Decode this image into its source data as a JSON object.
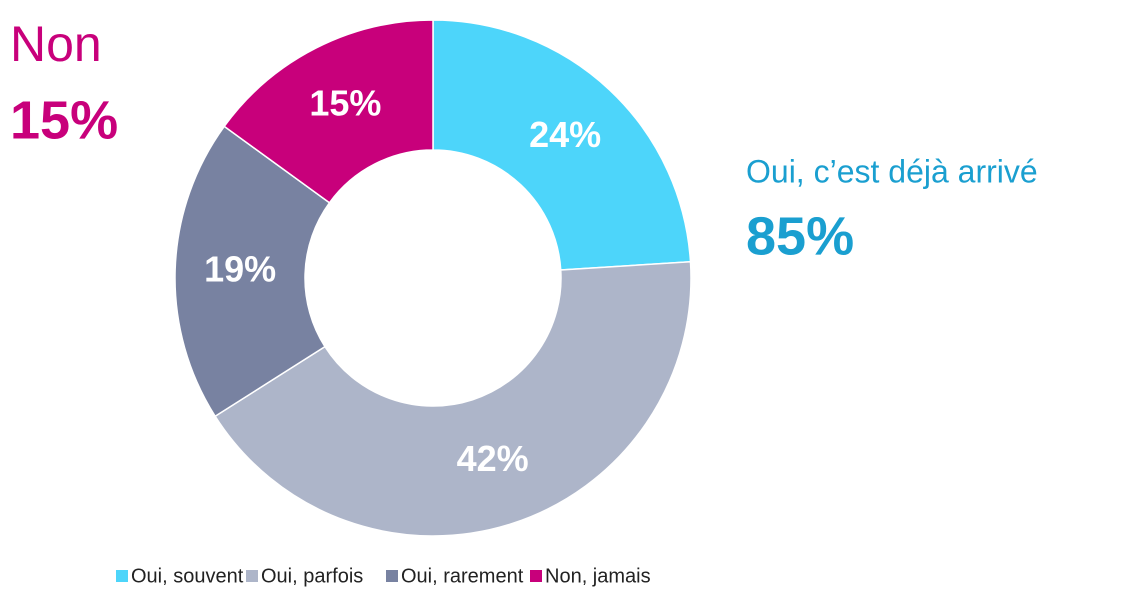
{
  "chart_data": {
    "type": "donut",
    "categories": [
      "Oui, souvent",
      "Oui, parfois",
      "Oui, rarement",
      "Non, jamais"
    ],
    "values": [
      24,
      42,
      19,
      15
    ],
    "value_labels": [
      "24%",
      "42%",
      "19%",
      "15%"
    ],
    "colors": [
      "#4dd5fa",
      "#adb5c9",
      "#7882a1",
      "#c8007b"
    ],
    "legend": "bottom",
    "annotations": [
      {
        "text": "Non",
        "value": 15,
        "value_label": "15%",
        "color": "#c8007b"
      },
      {
        "text": "Oui, c’est déjà arrivé",
        "value": 85,
        "value_label": "85%",
        "color": "#1a9fd0"
      }
    ]
  }
}
